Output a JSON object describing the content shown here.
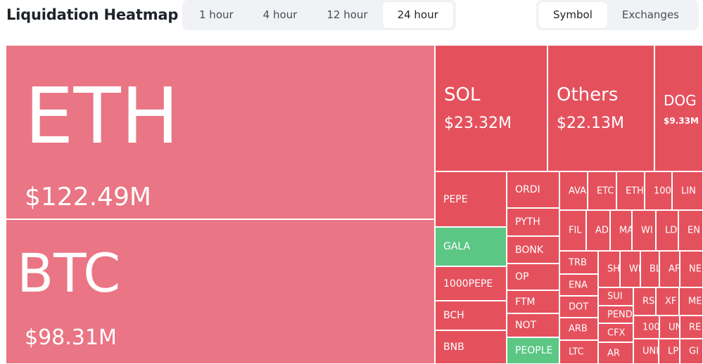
{
  "header": {
    "title": "Liquidation Heatmap",
    "time_options": [
      "1 hour",
      "4 hour",
      "12 hour",
      "24 hour"
    ],
    "time_selected": "24 hour",
    "group_options": [
      "Symbol",
      "Exchanges"
    ],
    "group_selected": "Symbol"
  },
  "colors": {
    "major_long": "#ea7584",
    "minor_red": "#e4515d",
    "green": "#5cc785"
  },
  "heatmap": {
    "ETH": {
      "symbol": "ETH",
      "value": "$122.49M"
    },
    "BTC": {
      "symbol": "BTC",
      "value": "$98.31M"
    },
    "SOL": {
      "symbol": "SOL",
      "value": "$23.32M"
    },
    "Others": {
      "symbol": "Others",
      "value": "$22.13M"
    },
    "DOG": {
      "symbol": "DOG",
      "value": "$9.33M"
    },
    "small": [
      "PEPE",
      "GALA",
      "1000PEPE",
      "BCH",
      "BNB",
      "ORDI",
      "PYTH",
      "BONK",
      "OP",
      "FTM",
      "NOT",
      "PEOPLE",
      "AVA",
      "ETC",
      "ETH",
      "100",
      "LIN",
      "FIL",
      "AD",
      "MA",
      "WI",
      "LD",
      "EN",
      "TRB",
      "ENA",
      "DOT",
      "ARB",
      "LTC",
      "SH",
      "WI",
      "BL",
      "AF",
      "NE",
      "SUI",
      "PEND",
      "CFX",
      "AR",
      "RS",
      "XF",
      "ME",
      "100",
      "UN",
      "RE",
      "UNI",
      "LP",
      "GI"
    ]
  }
}
